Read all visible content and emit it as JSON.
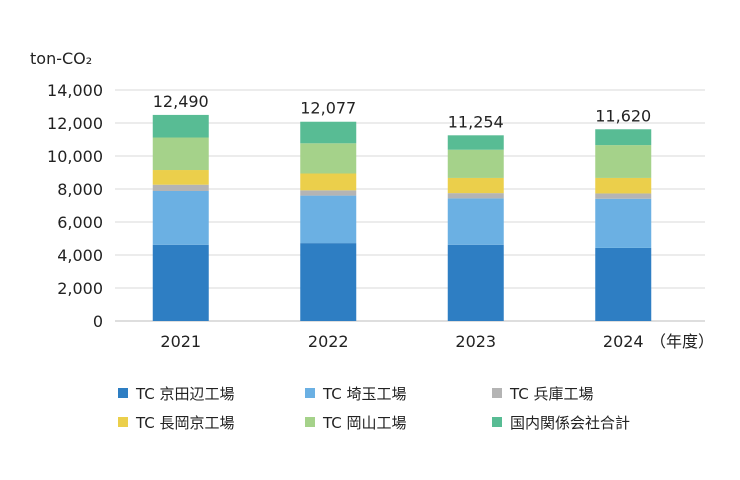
{
  "chart_data": {
    "type": "bar",
    "stacked": true,
    "unit_label": "ton-CO₂",
    "xlabel_suffix": "（年度）",
    "categories": [
      "2021",
      "2022",
      "2023",
      "2024"
    ],
    "totals_labels": [
      "12,490",
      "12,077",
      "11,254",
      "11,620"
    ],
    "ylim": [
      0,
      14000
    ],
    "yticks": [
      0,
      2000,
      4000,
      6000,
      8000,
      10000,
      12000,
      14000
    ],
    "ytick_labels": [
      "0",
      "2,000",
      "4,000",
      "6,000",
      "8,000",
      "10,000",
      "12,000",
      "14,000"
    ],
    "grid": true,
    "series": [
      {
        "name": "TC 京田辺工場",
        "color": "#2e7ec3",
        "values": [
          4620,
          4720,
          4620,
          4430
        ]
      },
      {
        "name": "TC 埼玉工場",
        "color": "#6bb0e3",
        "values": [
          3260,
          2880,
          2810,
          2980
        ]
      },
      {
        "name": "TC 兵庫工場",
        "color": "#b4b4b4",
        "values": [
          380,
          320,
          320,
          320
        ]
      },
      {
        "name": "TC 長岡京工場",
        "color": "#ebcf4b",
        "values": [
          890,
          1020,
          920,
          940
        ]
      },
      {
        "name": "TC 岡山工場",
        "color": "#a5d28a",
        "values": [
          1970,
          1830,
          1710,
          1990
        ]
      },
      {
        "name": "国内関係会社合計",
        "color": "#58bc94",
        "values": [
          1370,
          1307,
          874,
          960
        ]
      }
    ]
  }
}
